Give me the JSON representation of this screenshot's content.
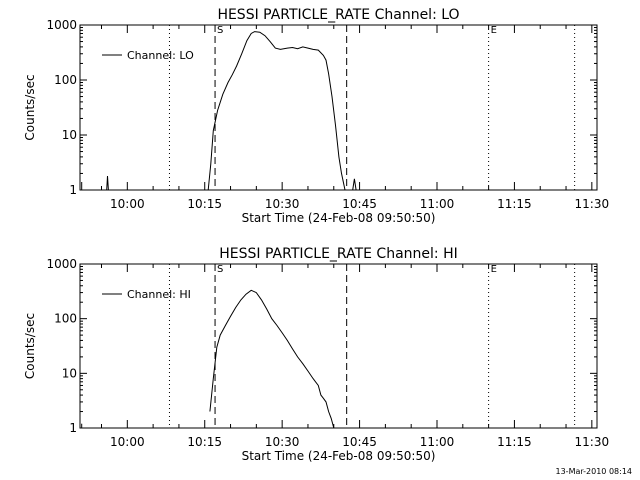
{
  "footer": {
    "timestamp": "13-Mar-2010 08:14"
  },
  "chart_data": [
    {
      "type": "line",
      "title": "HESSI PARTICLE_RATE Channel: LO",
      "xlabel": "Start Time (24-Feb-08 09:50:50)",
      "ylabel": "Counts/sec",
      "y_scale": "log",
      "ylim": [
        1,
        1000
      ],
      "xlim": [
        "09:50:50",
        "11:31:00"
      ],
      "x_ticks": [
        "10:00",
        "10:15",
        "10:30",
        "10:45",
        "11:00",
        "11:15",
        "11:30"
      ],
      "y_ticks": [
        "1",
        "10",
        "100",
        "1000"
      ],
      "legend": {
        "position": "top-left",
        "entries": [
          "Channel: LO"
        ]
      },
      "markers": [
        {
          "time": "10:08:10",
          "style": "dotted",
          "label": ""
        },
        {
          "time": "10:17:00",
          "style": "dashed",
          "label": "S"
        },
        {
          "time": "10:42:30",
          "style": "dashed",
          "label": ""
        },
        {
          "time": "11:10:00",
          "style": "dotted",
          "label": "E"
        },
        {
          "time": "11:26:40",
          "style": "dotted",
          "label": ""
        }
      ],
      "series": [
        {
          "name": "Channel: LO",
          "segments": [
            {
              "x": [
                "09:51:10",
                "09:51:10"
              ],
              "y": [
                1,
                1.4
              ]
            },
            {
              "x": [
                "09:56:00",
                "09:56:10",
                "09:56:20"
              ],
              "y": [
                1,
                1.8,
                1
              ]
            },
            {
              "x": [
                "10:15:40",
                "10:16:10",
                "10:16:40",
                "10:17:30",
                "10:18:30",
                "10:19:30",
                "10:20:20",
                "10:21:10",
                "10:22:10",
                "10:23:10",
                "10:24:00",
                "10:24:40",
                "10:25:40",
                "10:26:40",
                "10:27:40",
                "10:28:40",
                "10:29:40",
                "10:31:00",
                "10:32:00",
                "10:33:00",
                "10:34:00",
                "10:35:00",
                "10:36:00",
                "10:37:00",
                "10:38:00",
                "10:38:30",
                "10:39:00",
                "10:39:40",
                "10:40:20",
                "10:41:00",
                "10:41:30",
                "10:42:10"
              ],
              "y": [
                1,
                3,
                12,
                28,
                55,
                90,
                125,
                180,
                300,
                520,
                700,
                760,
                740,
                640,
                500,
                380,
                360,
                380,
                390,
                370,
                400,
                380,
                360,
                350,
                280,
                230,
                130,
                50,
                15,
                4,
                2,
                1
              ]
            },
            {
              "x": [
                "10:43:40",
                "10:44:00",
                "10:44:20"
              ],
              "y": [
                1,
                1.6,
                1
              ]
            }
          ]
        }
      ]
    },
    {
      "type": "line",
      "title": "HESSI PARTICLE_RATE Channel: HI",
      "xlabel": "Start Time (24-Feb-08 09:50:50)",
      "ylabel": "Counts/sec",
      "y_scale": "log",
      "ylim": [
        1,
        1000
      ],
      "xlim": [
        "09:50:50",
        "11:31:00"
      ],
      "x_ticks": [
        "10:00",
        "10:15",
        "10:30",
        "10:45",
        "11:00",
        "11:15",
        "11:30"
      ],
      "y_ticks": [
        "1",
        "10",
        "100",
        "1000"
      ],
      "legend": {
        "position": "top-left",
        "entries": [
          "Channel: HI"
        ]
      },
      "markers": [
        {
          "time": "10:08:10",
          "style": "dotted",
          "label": ""
        },
        {
          "time": "10:17:00",
          "style": "dashed",
          "label": "S"
        },
        {
          "time": "10:42:30",
          "style": "dashed",
          "label": ""
        },
        {
          "time": "11:10:00",
          "style": "dotted",
          "label": "E"
        },
        {
          "time": "11:26:40",
          "style": "dotted",
          "label": ""
        }
      ],
      "series": [
        {
          "name": "Channel: HI",
          "segments": [
            {
              "x": [
                "09:51:10",
                "09:51:10"
              ],
              "y": [
                1,
                1.2
              ]
            },
            {
              "x": [
                "10:16:00",
                "10:16:40",
                "10:17:20",
                "10:18:00",
                "10:19:00",
                "10:20:00",
                "10:21:00",
                "10:22:00",
                "10:23:00",
                "10:24:00",
                "10:25:00",
                "10:26:00",
                "10:27:00",
                "10:28:00",
                "10:29:00",
                "10:30:00",
                "10:31:00",
                "10:32:00",
                "10:33:00",
                "10:34:00",
                "10:35:00",
                "10:36:00",
                "10:37:00",
                "10:37:30",
                "10:38:00",
                "10:38:30",
                "10:39:00",
                "10:39:30",
                "10:40:00"
              ],
              "y": [
                2,
                8,
                30,
                50,
                75,
                110,
                160,
                220,
                280,
                330,
                300,
                220,
                150,
                100,
                75,
                55,
                40,
                28,
                20,
                15,
                11,
                8,
                6,
                4,
                3.5,
                3,
                2,
                1.5,
                1
              ]
            }
          ]
        }
      ]
    }
  ]
}
